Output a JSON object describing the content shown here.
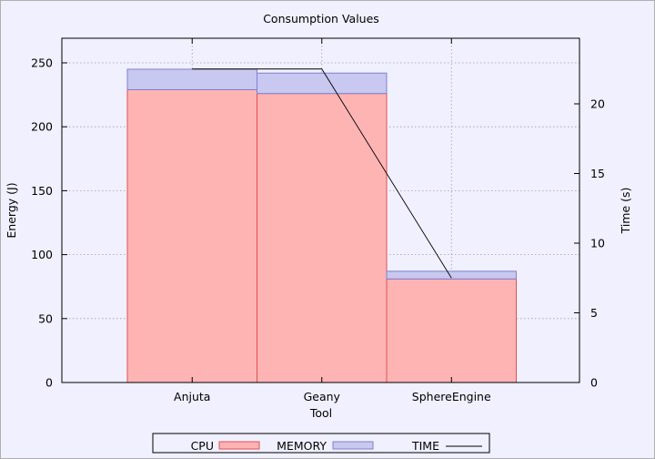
{
  "chart_data": {
    "type": "bar",
    "title": "Consumption Values",
    "xlabel": "Tool",
    "ylabel": "Energy (J)",
    "y2label": "Time (s)",
    "categories": [
      "Anjuta",
      "Geany",
      "SphereEngine"
    ],
    "ylim": [
      0,
      250
    ],
    "y_ticks": [
      0,
      50,
      100,
      150,
      200,
      250
    ],
    "y2lim": [
      0,
      20
    ],
    "y2_ticks": [
      0,
      5,
      10,
      15,
      20
    ],
    "stacked": true,
    "series": [
      {
        "name": "CPU",
        "kind": "bar",
        "values": [
          229,
          226,
          81
        ],
        "color": "#ffb4b4",
        "edge": "#e05050"
      },
      {
        "name": "MEMORY",
        "kind": "bar",
        "values": [
          16,
          16,
          6
        ],
        "color": "#c8c8f0",
        "edge": "#8080d0"
      },
      {
        "name": "TIME",
        "kind": "line",
        "axis": "y2",
        "values": [
          22.5,
          22.5,
          7.5
        ],
        "color": "#000000"
      }
    ],
    "grid": true,
    "legend_position": "bottom"
  }
}
